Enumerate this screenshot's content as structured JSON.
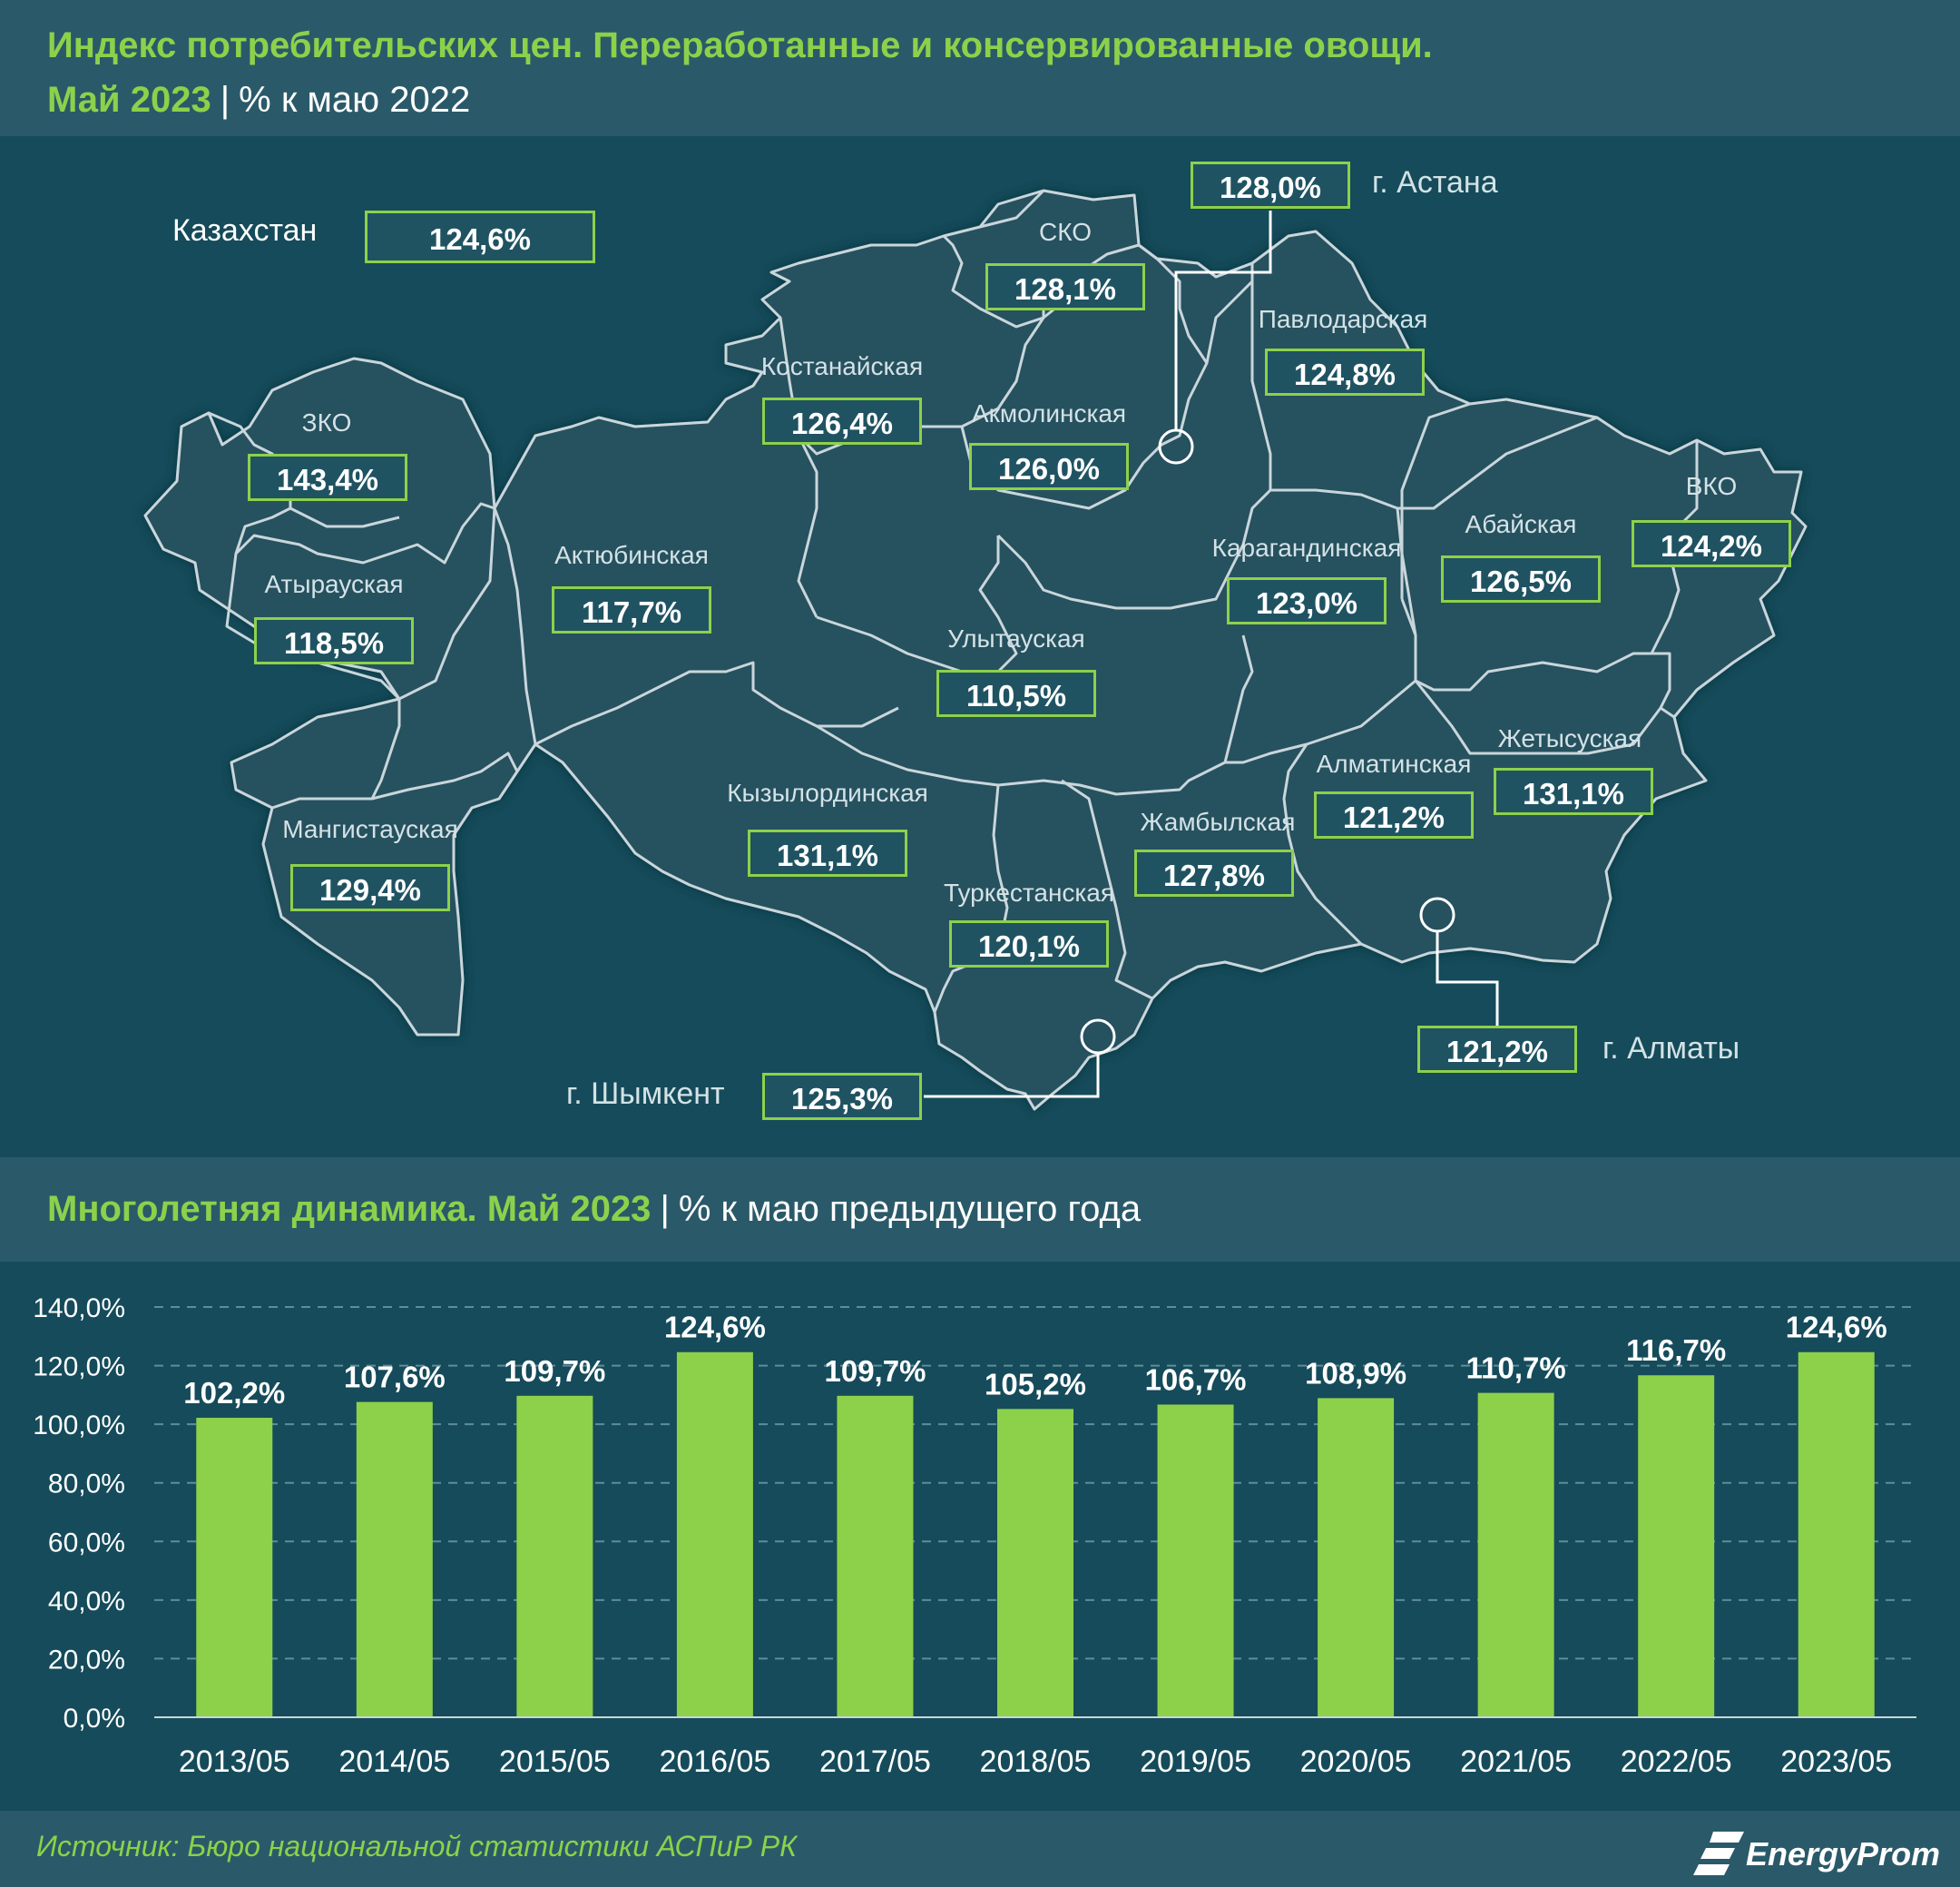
{
  "header": {
    "title": "Индекс потребительских цен. Переработанные и консервированные овощи.",
    "subtitle_period": "Май 2023",
    "subtitle_separator": "|",
    "subtitle_unit": "% к маю 2022"
  },
  "map": {
    "country_label": "Казахстан",
    "country_value": "124,6%",
    "regions": [
      {
        "id": "zko",
        "name": "ЗКО",
        "value": "143,4%"
      },
      {
        "id": "atyrau",
        "name": "Атырауская",
        "value": "118,5%"
      },
      {
        "id": "mangystau",
        "name": "Мангистауская",
        "value": "129,4%"
      },
      {
        "id": "aktobe",
        "name": "Актюбинская",
        "value": "117,7%"
      },
      {
        "id": "kostanay",
        "name": "Костанайская",
        "value": "126,4%"
      },
      {
        "id": "sko",
        "name": "СКО",
        "value": "128,1%"
      },
      {
        "id": "akmola",
        "name": "Акмолинская",
        "value": "126,0%"
      },
      {
        "id": "pavlodar",
        "name": "Павлодарская",
        "value": "124,8%"
      },
      {
        "id": "karaganda",
        "name": "Карагандинская",
        "value": "123,0%"
      },
      {
        "id": "abai",
        "name": "Абайская",
        "value": "126,5%"
      },
      {
        "id": "vko",
        "name": "ВКО",
        "value": "124,2%"
      },
      {
        "id": "ulytau",
        "name": "Улытауская",
        "value": "110,5%"
      },
      {
        "id": "kyzylorda",
        "name": "Кызылординская",
        "value": "131,1%"
      },
      {
        "id": "turkestan",
        "name": "Туркестанская",
        "value": "120,1%"
      },
      {
        "id": "zhambyl",
        "name": "Жамбылская",
        "value": "127,8%"
      },
      {
        "id": "almaty_reg",
        "name": "Алматинская",
        "value": "121,2%"
      },
      {
        "id": "zhetysu",
        "name": "Жетысуская",
        "value": "131,1%"
      }
    ],
    "cities": [
      {
        "id": "astana",
        "name": "г. Астана",
        "value": "128,0%"
      },
      {
        "id": "almaty",
        "name": "г. Алматы",
        "value": "121,2%"
      },
      {
        "id": "shymkent",
        "name": "г. Шымкент",
        "value": "125,3%"
      }
    ]
  },
  "dynamics_header": {
    "title": "Многолетняя динамика. Май 2023",
    "separator": "|",
    "unit": "% к маю предыдущего года"
  },
  "chart_data": {
    "type": "bar",
    "categories": [
      "2013/05",
      "2014/05",
      "2015/05",
      "2016/05",
      "2017/05",
      "2018/05",
      "2019/05",
      "2020/05",
      "2021/05",
      "2022/05",
      "2023/05"
    ],
    "values": [
      102.2,
      107.6,
      109.7,
      124.6,
      109.7,
      105.2,
      106.7,
      108.9,
      110.7,
      116.7,
      124.6
    ],
    "value_labels": [
      "102,2%",
      "107,6%",
      "109,7%",
      "124,6%",
      "109,7%",
      "105,2%",
      "106,7%",
      "108,9%",
      "110,7%",
      "116,7%",
      "124,6%"
    ],
    "ylim": [
      0,
      140
    ],
    "yticks": [
      "0,0%",
      "20,0%",
      "40,0%",
      "60,0%",
      "80,0%",
      "100,0%",
      "120,0%",
      "140,0%"
    ],
    "grid": true,
    "bar_color": "#8dd14b",
    "xlabel": "",
    "ylabel": ""
  },
  "footer": {
    "source": "Источник: Бюро национальной статистики АСПиР РК",
    "brand": "EnergyProm"
  },
  "colors": {
    "accent_green": "#8dd14b",
    "panel_dark": "#154b5a",
    "header_band": "#2a5a69",
    "map_fill": "#26515f",
    "border_line": "#c9d6db"
  }
}
